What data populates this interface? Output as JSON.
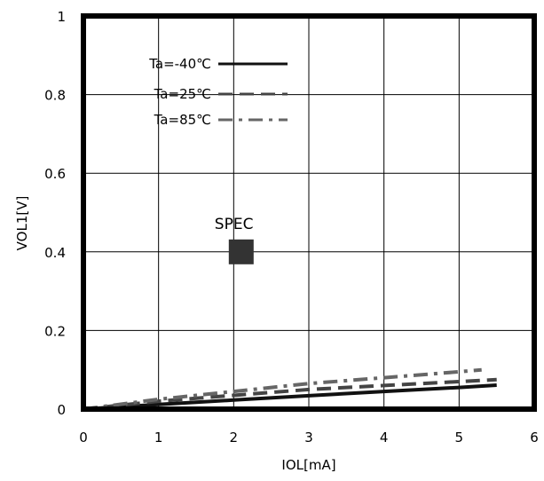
{
  "chart_data": {
    "type": "line",
    "title": "",
    "xlabel": "IOL[mA]",
    "ylabel": "VOL1[V]",
    "xlim": [
      0,
      6
    ],
    "ylim": [
      0,
      1
    ],
    "x_ticks": [
      "0",
      "1",
      "2",
      "3",
      "4",
      "5",
      "6"
    ],
    "y_ticks": [
      "0",
      "0.2",
      "0.4",
      "0.6",
      "0.8",
      "1"
    ],
    "grid": true,
    "legend_position": "top-left",
    "series": [
      {
        "name": "Ta=-40℃",
        "style": "solid",
        "color": "#111111",
        "x": [
          0,
          1,
          2,
          3,
          4,
          5,
          5.5
        ],
        "y": [
          0,
          0.012,
          0.023,
          0.034,
          0.045,
          0.055,
          0.061
        ]
      },
      {
        "name": "Ta=25℃",
        "style": "dashed",
        "color": "#444444",
        "x": [
          0,
          1,
          2,
          3,
          4,
          5,
          5.5
        ],
        "y": [
          0,
          0.02,
          0.035,
          0.05,
          0.06,
          0.07,
          0.075
        ]
      },
      {
        "name": "Ta=85℃",
        "style": "dashdot",
        "color": "#666666",
        "x": [
          0,
          1,
          2,
          3,
          4,
          5,
          5.3
        ],
        "y": [
          0,
          0.025,
          0.045,
          0.065,
          0.08,
          0.095,
          0.1
        ]
      }
    ],
    "annotations": [
      {
        "text": "SPEC",
        "x": 2.1,
        "y": 0.4,
        "marker": "square",
        "color": "#333333"
      }
    ]
  }
}
